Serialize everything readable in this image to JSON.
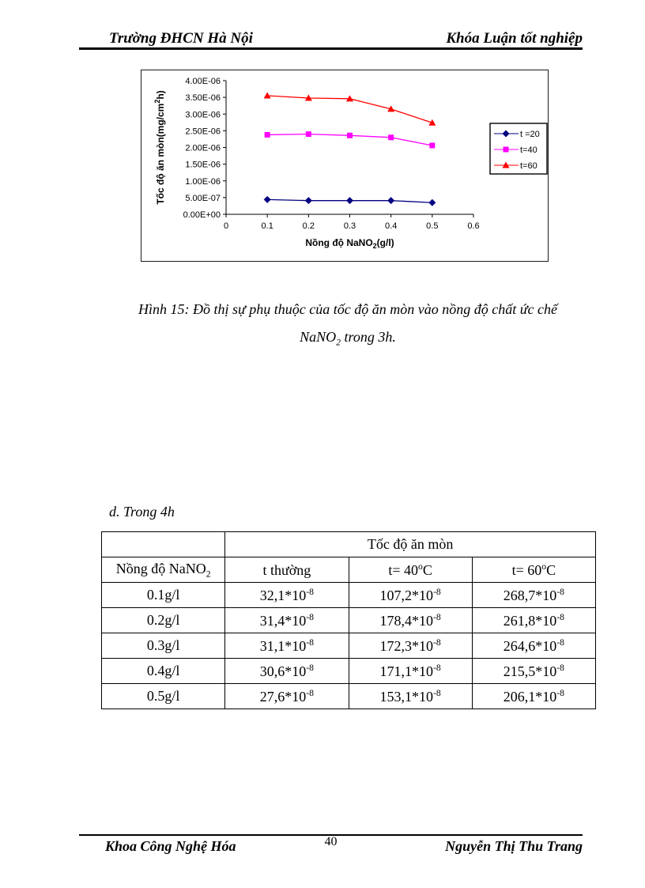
{
  "header": {
    "left": "Trường ĐHCN Hà Nội",
    "right": "Khóa Luận tốt nghiệp"
  },
  "chart_data": {
    "type": "line",
    "x": [
      0.1,
      0.2,
      0.3,
      0.4,
      0.5
    ],
    "series": [
      {
        "name": "t =20",
        "color": "#000080",
        "marker": "diamond",
        "values": [
          4.4e-07,
          4.1e-07,
          4.1e-07,
          4.1e-07,
          3.5e-07
        ]
      },
      {
        "name": "t=40",
        "color": "#FF00FF",
        "marker": "square",
        "values": [
          2.38e-06,
          2.4e-06,
          2.36e-06,
          2.3e-06,
          2.06e-06
        ]
      },
      {
        "name": "t=60",
        "color": "#FF0000",
        "marker": "triangle",
        "values": [
          3.55e-06,
          3.48e-06,
          3.46e-06,
          3.15e-06,
          2.74e-06
        ]
      }
    ],
    "xlabel": {
      "pre": "Nồng độ NaNO",
      "sub": "2",
      "post": "(g/l)"
    },
    "ylabel": {
      "pre": "Tốc độ ăn mòn(mg/cm",
      "sup": "2",
      "post": "h)"
    },
    "x_ticks": [
      "0",
      "0.1",
      "0.2",
      "0.3",
      "0.4",
      "0.5",
      "0.6"
    ],
    "y_ticks": [
      "0.00E+00",
      "5.00E-07",
      "1.00E-06",
      "1.50E-06",
      "2.00E-06",
      "2.50E-06",
      "3.00E-06",
      "3.50E-06",
      "4.00E-06"
    ],
    "xlim": [
      0,
      0.6
    ],
    "ylim": [
      0,
      4e-06
    ],
    "grid": false,
    "legend_position": "right"
  },
  "caption": {
    "line1": "Hình 15: Đồ thị sự phụ thuộc của tốc độ ăn mòn vào nồng độ chất ức chế",
    "line2": {
      "pre": "NaNO",
      "sub": "2",
      "post": " trong 3h."
    }
  },
  "section": {
    "label": "d. Trong 4h"
  },
  "table": {
    "span_header": "Tốc độ ăn mòn",
    "col_headers": [
      {
        "pre": "Nồng độ NaNO",
        "sub": "2",
        "post": ""
      },
      {
        "pre": "t thường",
        "sup": "",
        "post": ""
      },
      {
        "pre": "t= 40",
        "sup": "o",
        "post": "C"
      },
      {
        "pre": "t= 60",
        "sup": "o",
        "post": "C"
      }
    ],
    "rows": [
      {
        "conc": "0.1g/l",
        "values": [
          {
            "base": "32,1*10",
            "sup": "-8"
          },
          {
            "base": "107,2*10",
            "sup": "-8"
          },
          {
            "base": "268,7*10",
            "sup": "-8"
          }
        ]
      },
      {
        "conc": "0.2g/l",
        "values": [
          {
            "base": "31,4*10",
            "sup": "-8"
          },
          {
            "base": "178,4*10",
            "sup": "-8"
          },
          {
            "base": "261,8*10",
            "sup": "-8"
          }
        ]
      },
      {
        "conc": "0.3g/l",
        "values": [
          {
            "base": "31,1*10",
            "sup": "-8"
          },
          {
            "base": "172,3*10",
            "sup": "-8"
          },
          {
            "base": "264,6*10",
            "sup": "-8"
          }
        ]
      },
      {
        "conc": "0.4g/l",
        "values": [
          {
            "base": "30,6*10",
            "sup": "-8"
          },
          {
            "base": "171,1*10",
            "sup": "-8"
          },
          {
            "base": "215,5*10",
            "sup": "-8"
          }
        ]
      },
      {
        "conc": "0.5g/l",
        "values": [
          {
            "base": "27,6*10",
            "sup": "-8"
          },
          {
            "base": "153,1*10",
            "sup": "-8"
          },
          {
            "base": "206,1*10",
            "sup": "-8"
          }
        ]
      }
    ]
  },
  "footer": {
    "left": "Khoa Công Nghệ Hóa",
    "page_number": "40",
    "right": "Nguyễn Thị Thu Trang"
  }
}
